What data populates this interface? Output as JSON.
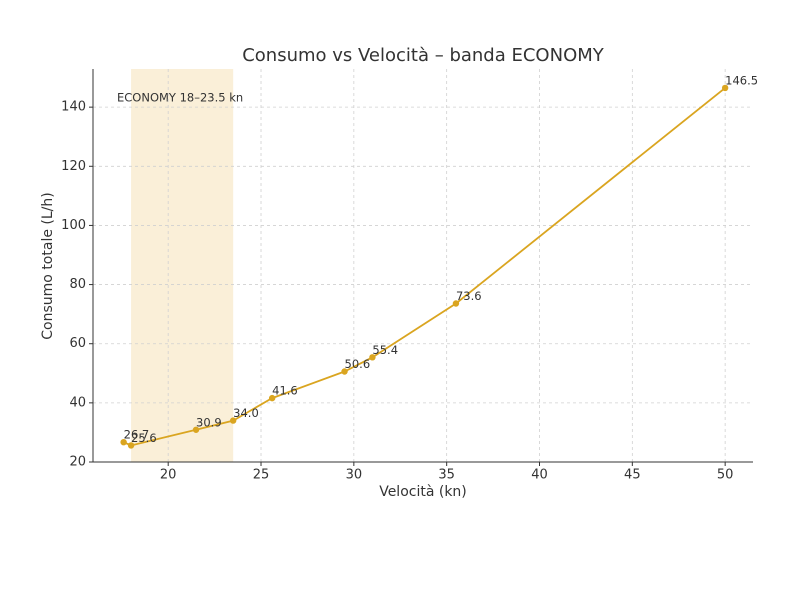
{
  "chart_data": {
    "type": "line",
    "title": "Consumo vs Velocità – banda ECONOMY",
    "xlabel": "Velocità (kn)",
    "ylabel": "Consumo totale (L/h)",
    "x": [
      17.6,
      18.0,
      21.5,
      23.5,
      25.6,
      29.5,
      31.0,
      35.5,
      50.0
    ],
    "series": [
      {
        "name": "Consumo",
        "color": "#daa520",
        "values": [
          26.7,
          25.6,
          30.9,
          34.0,
          41.6,
          50.6,
          55.4,
          73.6,
          146.5
        ],
        "value_labels": [
          "26.7",
          "25.6",
          "30.9",
          "34.0",
          "41.6",
          "50.6",
          "55.4",
          "73.6",
          "146.5"
        ]
      }
    ],
    "band": {
      "x0": 18,
      "x1": 23.5,
      "label": "ECONOMY 18–23.5 kn",
      "color": "#faefd8"
    },
    "xlim": [
      15.95,
      51.5
    ],
    "ylim": [
      20,
      152.9
    ],
    "xticks": [
      20,
      25,
      30,
      35,
      40,
      45,
      50
    ],
    "yticks": [
      20,
      40,
      60,
      80,
      100,
      120,
      140
    ],
    "grid": true
  }
}
